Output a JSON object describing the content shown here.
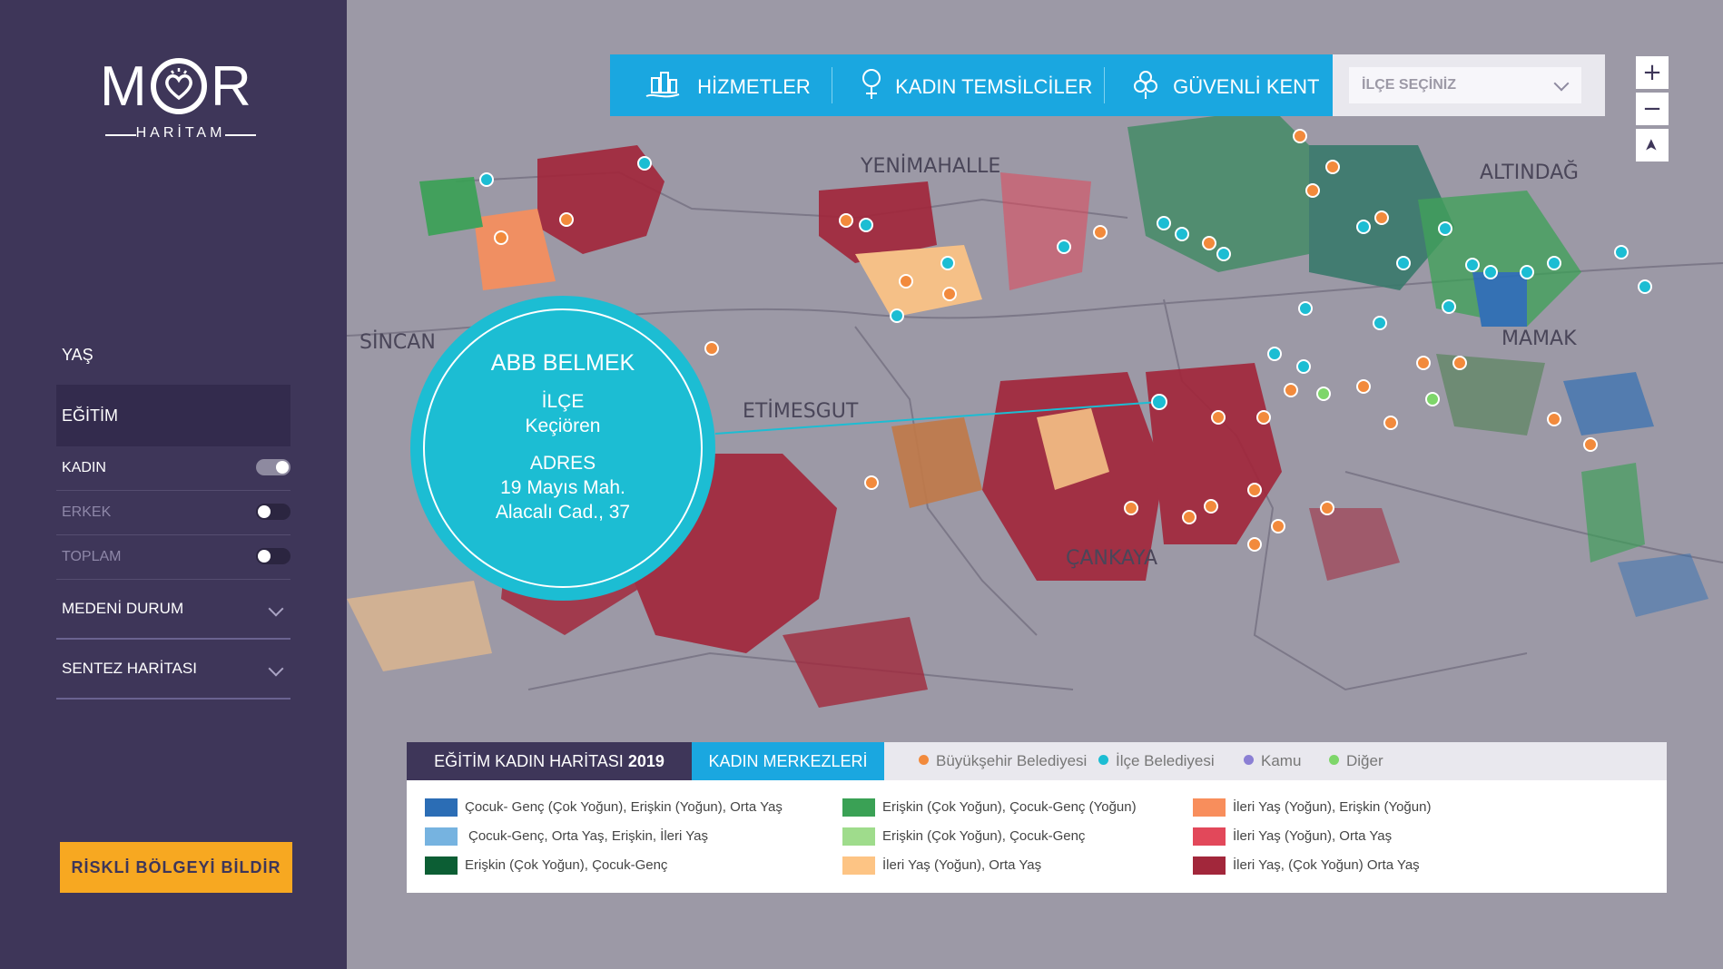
{
  "logo": {
    "word_m": "M",
    "word_r": "R",
    "sub": "HARİTAM"
  },
  "sidebar": {
    "items": [
      {
        "label": "YAŞ"
      },
      {
        "label": "EĞİTİM",
        "active": true
      }
    ],
    "subitems": [
      {
        "label": "KADIN",
        "on": true
      },
      {
        "label": "ERKEK",
        "on": false
      },
      {
        "label": "TOPLAM",
        "on": false
      }
    ],
    "dropdowns": [
      {
        "label": "MEDENİ DURUM"
      },
      {
        "label": "SENTEZ HARİTASI"
      }
    ],
    "report_button": "RİSKLİ BÖLGEYİ BİLDİR"
  },
  "topnav": {
    "tabs": [
      {
        "label": "HİZMETLER",
        "icon": "buildings-icon"
      },
      {
        "label": "KADIN TEMSİLCİLER",
        "icon": "female-symbol-icon"
      },
      {
        "label": "GÜVENLİ KENT",
        "icon": "safe-city-icon"
      }
    ],
    "district_select": "İLÇE SEÇİNİZ"
  },
  "zoom": {
    "in": "+",
    "out": "−",
    "locate": "➤"
  },
  "map_labels": [
    {
      "text": "YENİMAHALLE"
    },
    {
      "text": "ALTINDAĞ"
    },
    {
      "text": "SİNCAN"
    },
    {
      "text": "MAMAK"
    },
    {
      "text": "ETİMESGUT"
    },
    {
      "text": "ÇANKAYA"
    }
  ],
  "bubble": {
    "title": "ABB BELMEK",
    "district_label": "İLÇE",
    "district": "Keçiören",
    "address_label": "ADRES",
    "address_line1": "19 Mayıs Mah.",
    "address_line2": "Alacalı Cad., 37"
  },
  "legend": {
    "tab_title": "EĞİTİM KADIN HARİTASI",
    "tab_year": "2019",
    "tab_centers": "KADIN MERKEZLERİ",
    "keys": [
      {
        "label": "Büyükşehir Belediyesi",
        "color": "#f28a3c"
      },
      {
        "label": "İlçe Belediyesi",
        "color": "#1cbdd3"
      },
      {
        "label": "Kamu",
        "color": "#8b7fd4"
      },
      {
        "label": "Diğer",
        "color": "#7ed66a"
      }
    ],
    "swatches": [
      {
        "label": "Çocuk- Genç (Çok Yoğun), Erişkin (Yoğun), Orta Yaş",
        "color": "#2b6db5"
      },
      {
        "label": "Çocuk-Genç, Orta Yaş, Erişkin, İleri Yaş",
        "color": "#76b3e0"
      },
      {
        "label": "Erişkin (Çok Yoğun), Çocuk-Genç",
        "color": "#0c5e34"
      },
      {
        "label": "Erişkin (Çok Yoğun), Çocuk-Genç (Yoğun)",
        "color": "#3aa155"
      },
      {
        "label": "Erişkin (Çok Yoğun), Çocuk-Genç",
        "color": "#9fdc8c"
      },
      {
        "label": "İleri Yaş (Yoğun), Orta Yaş",
        "color": "#fdc484"
      },
      {
        "label": "İleri Yaş (Yoğun), Erişkin (Yoğun)",
        "color": "#f88e5c"
      },
      {
        "label": "İleri Yaş (Yoğun), Orta Yaş",
        "color": "#e2485a"
      },
      {
        "label": "İleri Yaş, (Çok Yoğun) Orta Yaş",
        "color": "#a2273b"
      }
    ]
  }
}
